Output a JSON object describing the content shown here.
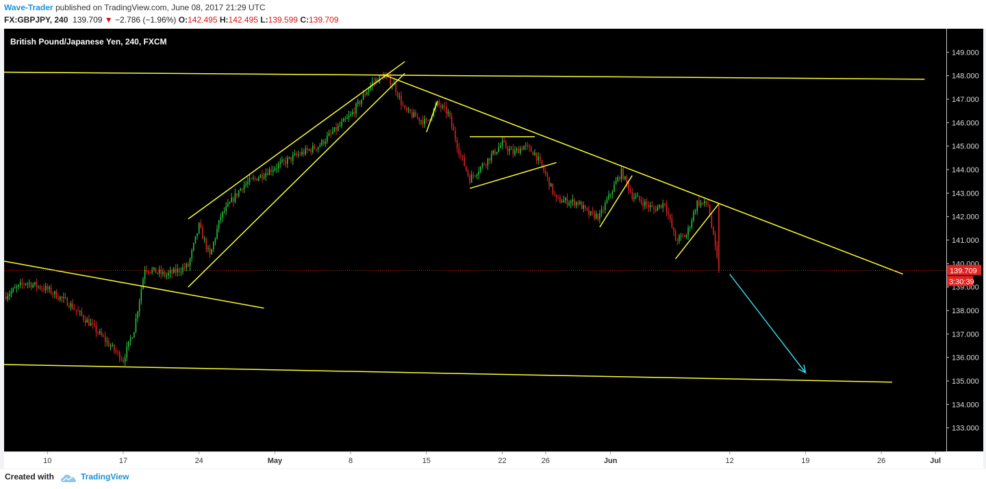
{
  "header": {
    "author": "Wave-Trader",
    "published": "published on TradingView.com, June 08, 2017 21:29 UTC",
    "symbol": "FX:GBPJPY, 240",
    "last": "139.709",
    "change_arrow": "▼",
    "change": "−2.786 (−1.96%)",
    "o_label": "O:",
    "o_value": "142.495",
    "h_label": "H:",
    "h_value": "142.495",
    "l_label": "L:",
    "l_value": "139.599",
    "c_label": "C:",
    "c_value": "139.709"
  },
  "footer": {
    "created_with": "Created with",
    "brand": "TradingView",
    "logo_icon": "tradingview-cloud-icon"
  },
  "colors": {
    "background": "#000000",
    "up": "#26c73a",
    "down": "#e02424",
    "trendline": "#ffff33",
    "arrow": "#33ddee",
    "price_tag": "#e02424"
  },
  "chart_data": {
    "type": "candlestick",
    "title": "British Pound/Japanese Yen, 240, FXCM",
    "symbol": "GBPJPY",
    "timeframe": "240",
    "x_ticks": [
      "10",
      "17",
      "24",
      "May",
      "8",
      "15",
      "22",
      "26",
      "Jun",
      "12",
      "19",
      "26",
      "Jul"
    ],
    "x_tick_dates": [
      "2017-04-10",
      "2017-04-17",
      "2017-04-24",
      "2017-05-01",
      "2017-05-08",
      "2017-05-15",
      "2017-05-22",
      "2017-05-26",
      "2017-06-01",
      "2017-06-12",
      "2017-06-19",
      "2017-06-26",
      "2017-07-01"
    ],
    "y_ticks": [
      "149.000",
      "148.000",
      "147.000",
      "146.000",
      "145.000",
      "144.000",
      "143.000",
      "142.000",
      "141.000",
      "140.000",
      "139.000",
      "138.000",
      "137.000",
      "136.000",
      "135.000",
      "134.000",
      "133.000"
    ],
    "y_range": [
      132.0,
      150.0
    ],
    "x_range": [
      "2017-04-06",
      "2017-07-02"
    ],
    "last_price": "139.709",
    "countdown": "3:30:39",
    "path": [
      [
        "2017-04-06",
        138.6
      ],
      [
        "2017-04-08",
        139.2
      ],
      [
        "2017-04-10",
        138.9
      ],
      [
        "2017-04-12",
        138.3
      ],
      [
        "2017-04-14",
        137.4
      ],
      [
        "2017-04-17",
        135.9
      ],
      [
        "2017-04-18",
        137.2
      ],
      [
        "2017-04-19",
        139.8
      ],
      [
        "2017-04-21",
        139.5
      ],
      [
        "2017-04-23",
        139.9
      ],
      [
        "2017-04-24",
        141.6
      ],
      [
        "2017-04-25",
        140.3
      ],
      [
        "2017-04-26",
        142.0
      ],
      [
        "2017-04-28",
        143.3
      ],
      [
        "2017-05-01",
        144.1
      ],
      [
        "2017-05-03",
        144.6
      ],
      [
        "2017-05-05",
        145.0
      ],
      [
        "2017-05-08",
        146.3
      ],
      [
        "2017-05-10",
        147.7
      ],
      [
        "2017-05-11",
        148.0
      ],
      [
        "2017-05-12",
        147.6
      ],
      [
        "2017-05-13",
        146.5
      ],
      [
        "2017-05-15",
        146.0
      ],
      [
        "2017-05-16",
        146.8
      ],
      [
        "2017-05-17",
        146.4
      ],
      [
        "2017-05-18",
        144.8
      ],
      [
        "2017-05-19",
        143.6
      ],
      [
        "2017-05-21",
        144.6
      ],
      [
        "2017-05-22",
        145.1
      ],
      [
        "2017-05-23",
        144.7
      ],
      [
        "2017-05-24",
        145.0
      ],
      [
        "2017-05-25",
        144.7
      ],
      [
        "2017-05-26",
        143.8
      ],
      [
        "2017-05-27",
        142.7
      ],
      [
        "2017-05-29",
        142.6
      ],
      [
        "2017-05-30",
        142.1
      ],
      [
        "2017-05-31",
        142.0
      ],
      [
        "2017-06-01",
        143.0
      ],
      [
        "2017-06-02",
        143.9
      ],
      [
        "2017-06-03",
        142.9
      ],
      [
        "2017-06-05",
        142.3
      ],
      [
        "2017-06-06",
        142.6
      ],
      [
        "2017-06-07",
        141.0
      ],
      [
        "2017-06-08",
        141.2
      ],
      [
        "2017-06-09",
        142.6
      ],
      [
        "2017-06-10",
        142.5
      ],
      [
        "2017-06-11",
        139.709
      ]
    ],
    "drawings": {
      "lines": [
        {
          "from": [
            "2017-04-06",
            148.15
          ],
          "to": [
            "2017-06-30",
            147.85
          ]
        },
        {
          "from": [
            "2017-04-06",
            140.1
          ],
          "to": [
            "2017-04-30",
            138.1
          ]
        },
        {
          "from": [
            "2017-04-06",
            135.7
          ],
          "to": [
            "2017-06-27",
            134.95
          ]
        },
        {
          "from": [
            "2017-04-23",
            141.9
          ],
          "to": [
            "2017-05-13",
            148.6
          ]
        },
        {
          "from": [
            "2017-04-23",
            139.0
          ],
          "to": [
            "2017-05-13",
            148.1
          ]
        },
        {
          "from": [
            "2017-05-11",
            148.05
          ],
          "to": [
            "2017-06-28",
            139.55
          ]
        },
        {
          "from": [
            "2017-05-15",
            145.6
          ],
          "to": [
            "2017-05-16",
            146.9
          ]
        },
        {
          "from": [
            "2017-05-19",
            145.4
          ],
          "to": [
            "2017-05-25",
            145.4
          ]
        },
        {
          "from": [
            "2017-05-19",
            143.2
          ],
          "to": [
            "2017-05-27",
            144.3
          ]
        },
        {
          "from": [
            "2017-05-31",
            141.55
          ],
          "to": [
            "2017-06-03",
            143.75
          ]
        },
        {
          "from": [
            "2017-06-07",
            140.2
          ],
          "to": [
            "2017-06-11",
            142.55
          ]
        }
      ],
      "forecast_arrow": {
        "from": [
          "2017-06-12",
          139.55
        ],
        "to": [
          "2017-06-19",
          135.35
        ]
      }
    }
  }
}
